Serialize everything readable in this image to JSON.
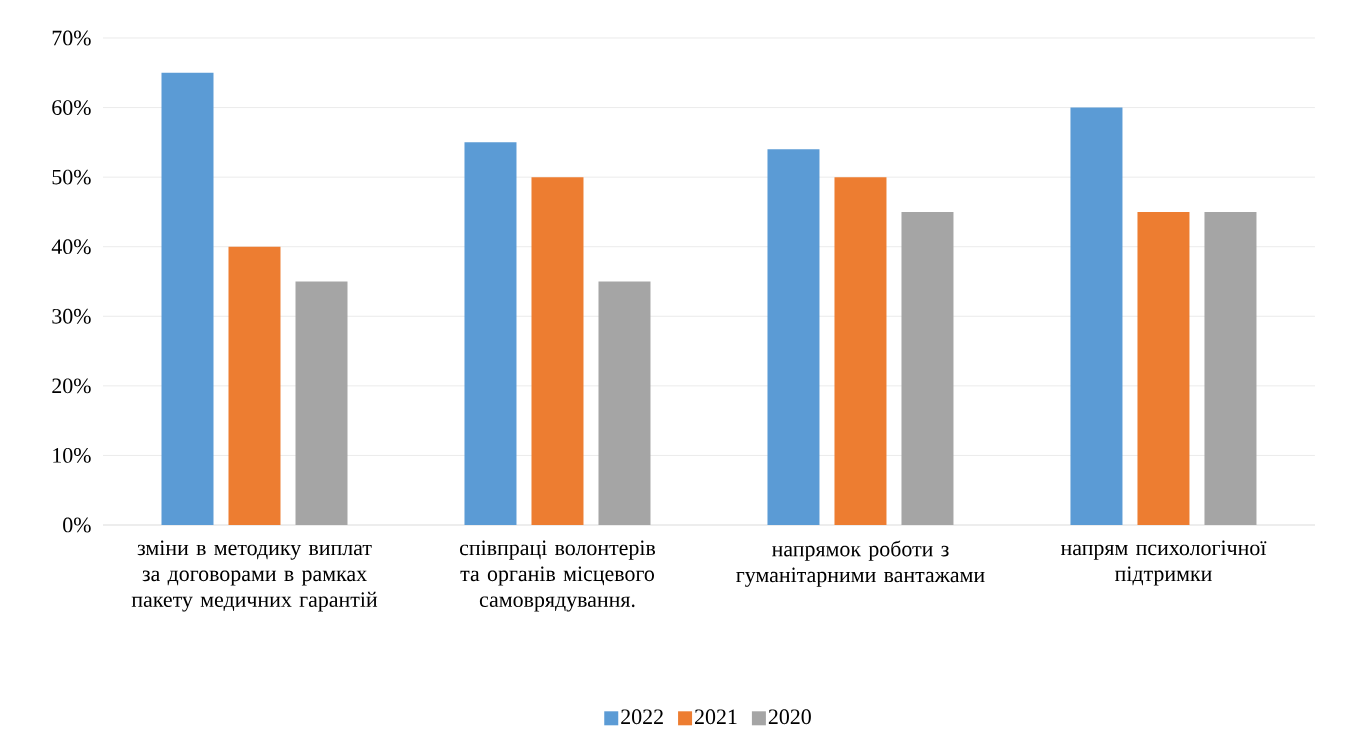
{
  "chart_data": {
    "type": "bar",
    "categories": [
      "зміни в методику виплат за договорами в рамках пакету медичних гарантій",
      "співпраці волонтерів та органів місцевого самоврядування.",
      "напрямок роботи з гуманітарними вантажами",
      "напрям психологічної підтримки"
    ],
    "series": [
      {
        "name": "2022",
        "color": "#5b9bd5",
        "values": [
          65,
          55,
          54,
          60
        ]
      },
      {
        "name": "2021",
        "color": "#ed7d31",
        "values": [
          40,
          50,
          50,
          45
        ]
      },
      {
        "name": "2020",
        "color": "#a5a5a5",
        "values": [
          35,
          35,
          45,
          45
        ]
      }
    ],
    "ylim": [
      0,
      70
    ],
    "yticks": [
      {
        "value": 0,
        "label": "0%"
      },
      {
        "value": 10,
        "label": "10%"
      },
      {
        "value": 20,
        "label": "20%"
      },
      {
        "value": 30,
        "label": "30%"
      },
      {
        "value": 40,
        "label": "40%"
      },
      {
        "value": 50,
        "label": "50%"
      },
      {
        "value": 60,
        "label": "60%"
      },
      {
        "value": 70,
        "label": "70%"
      }
    ],
    "grid": "y",
    "legend": "bottom"
  }
}
